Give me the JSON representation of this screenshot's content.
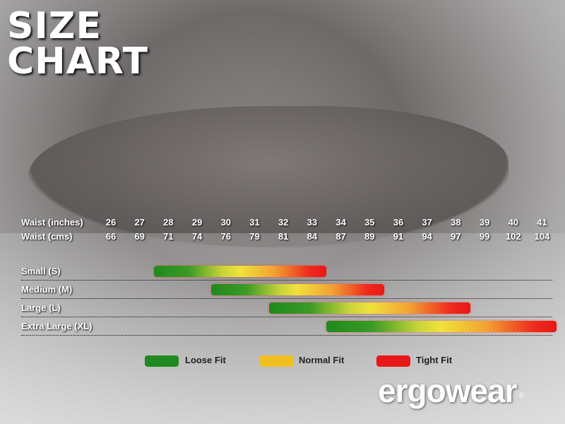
{
  "chart_data": {
    "type": "bar",
    "title": "SIZE CHART",
    "waist_inches_label": "Waist (inches)",
    "waist_cms_label": "Waist (cms)",
    "waist_inches": [
      26,
      27,
      28,
      29,
      30,
      31,
      32,
      33,
      34,
      35,
      36,
      37,
      38,
      39,
      40,
      41
    ],
    "waist_cms": [
      66,
      69,
      71,
      74,
      76,
      79,
      81,
      84,
      87,
      89,
      91,
      94,
      97,
      99,
      102,
      104
    ],
    "sizes": [
      {
        "label": "Small (S)",
        "from_inches": 28,
        "to_inches": 33
      },
      {
        "label": "Medium (M)",
        "from_inches": 30,
        "to_inches": 35
      },
      {
        "label": "Large (L)",
        "from_inches": 32,
        "to_inches": 38
      },
      {
        "label": "Extra Large (XL)",
        "from_inches": 34,
        "to_inches": 41
      }
    ],
    "legend": [
      {
        "label": "Loose Fit",
        "color": "#1f8a1f"
      },
      {
        "label": "Normal Fit",
        "color": "#f0c020"
      },
      {
        "label": "Tight Fit",
        "color": "#e81818"
      }
    ]
  },
  "brand": {
    "logo_text": "ergowear",
    "registered": "®"
  }
}
